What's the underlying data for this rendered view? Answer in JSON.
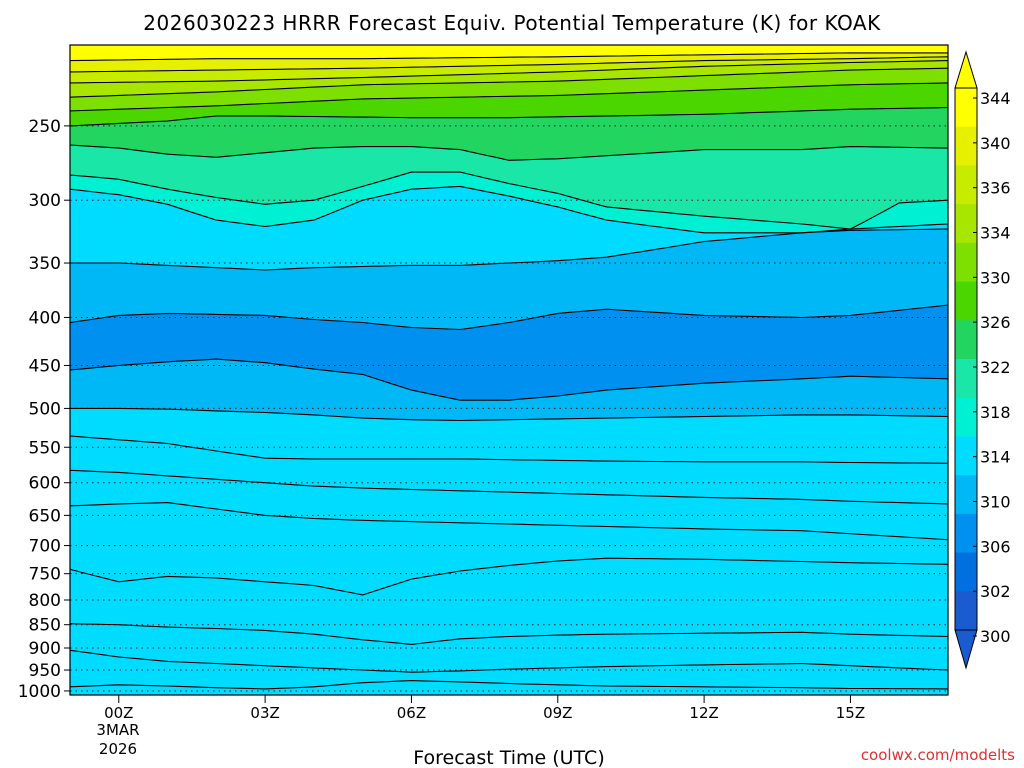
{
  "chart_data": {
    "type": "contour",
    "title": "2026030223 HRRR Forecast Equiv. Potential Temperature (K) for KOAK",
    "xlabel": "Forecast Time (UTC)",
    "ylabel": "",
    "x_ticks": [
      "00Z",
      "03Z",
      "06Z",
      "09Z",
      "12Z",
      "15Z"
    ],
    "x_tick_hours": [
      0,
      3,
      6,
      9,
      12,
      15
    ],
    "x_date_label": [
      "3MAR",
      "2026"
    ],
    "xlim": [
      -1,
      17
    ],
    "y_scale": "log",
    "y_ticks": [
      250,
      300,
      350,
      400,
      450,
      500,
      550,
      600,
      650,
      700,
      750,
      800,
      850,
      900,
      950,
      1000
    ],
    "ylim": [
      1010,
      205
    ],
    "colorbar": {
      "labels": [
        "344",
        "340",
        "336",
        "334",
        "330",
        "326",
        "322",
        "318",
        "314",
        "310",
        "306",
        "302",
        "300"
      ],
      "colors": [
        "#ffff00",
        "#e6f000",
        "#c8ec00",
        "#a8e600",
        "#7ee000",
        "#4cd600",
        "#22d460",
        "#1ae6a8",
        "#00f0d4",
        "#00dcff",
        "#00b8f6",
        "#0090f0",
        "#0070e0",
        "#1a5cd0"
      ]
    },
    "terrain_color": "#a0522d",
    "contours": [
      {
        "level": 336,
        "hours": [
          -1,
          2,
          5,
          9,
          12,
          15,
          17
        ],
        "pressures": [
          213,
          212,
          212,
          211,
          210,
          209,
          209
        ]
      },
      {
        "level": 334,
        "hours": [
          -1,
          2,
          5,
          9,
          12,
          15,
          17
        ],
        "pressures": [
          219,
          218,
          217,
          215,
          213,
          212,
          211
        ]
      },
      {
        "level": 332,
        "hours": [
          -1,
          2,
          5,
          9,
          12,
          15,
          17
        ],
        "pressures": [
          225,
          224,
          222,
          219,
          216,
          214,
          213
        ]
      },
      {
        "level": 330,
        "hours": [
          -1,
          2,
          5,
          9,
          12,
          15,
          17
        ],
        "pressures": [
          233,
          230,
          226,
          224,
          221,
          218,
          217
        ]
      },
      {
        "level": 328,
        "hours": [
          -1,
          2,
          5,
          9,
          12,
          15,
          17
        ],
        "pressures": [
          241,
          238,
          234,
          232,
          229,
          226,
          225
        ]
      },
      {
        "level": 326,
        "hours": [
          -1,
          1,
          2,
          3,
          6,
          8,
          12,
          15,
          17
        ],
        "pressures": [
          250,
          247,
          244,
          244,
          245,
          245,
          243,
          240,
          239
        ]
      },
      {
        "level": 324,
        "hours": [
          -1,
          0,
          1,
          2,
          3,
          4,
          5,
          6,
          7,
          8,
          9,
          10,
          12,
          14,
          15,
          17
        ],
        "pressures": [
          262,
          264,
          268,
          270,
          267,
          264,
          263,
          263,
          265,
          272,
          271,
          269,
          265,
          265,
          263,
          264
        ]
      },
      {
        "level": 322,
        "hours": [
          -1,
          0,
          1,
          2,
          3,
          4,
          5,
          6,
          7,
          8,
          9,
          10,
          12,
          14,
          15,
          16,
          17
        ],
        "pressures": [
          282,
          285,
          292,
          298,
          303,
          300,
          290,
          280,
          280,
          288,
          295,
          305,
          312,
          318,
          322,
          302,
          300
        ]
      },
      {
        "level": 320,
        "hours": [
          -1,
          0,
          1,
          2,
          3,
          4,
          5,
          6,
          7,
          8,
          9,
          10,
          12,
          14,
          15,
          17
        ],
        "pressures": [
          292,
          296,
          303,
          315,
          320,
          315,
          300,
          292,
          290,
          297,
          305,
          315,
          325,
          325,
          322,
          318
        ]
      },
      {
        "level": 318,
        "hours": [
          -1,
          0,
          1,
          2,
          3,
          4,
          5,
          6,
          7,
          8,
          9,
          10,
          12,
          14,
          15,
          17
        ],
        "pressures": [
          350,
          350,
          352,
          354,
          356,
          354,
          353,
          352,
          352,
          350,
          348,
          345,
          332,
          325,
          323,
          322
        ]
      },
      {
        "level": 316,
        "hours": [
          -1,
          0,
          1,
          2,
          3,
          4,
          5,
          6,
          7,
          8,
          9,
          10,
          12,
          14,
          15,
          17
        ],
        "pressures": [
          405,
          398,
          396,
          397,
          398,
          402,
          405,
          410,
          412,
          405,
          396,
          392,
          398,
          400,
          398,
          388
        ]
      },
      {
        "level": 314,
        "hours": [
          -1,
          0,
          1,
          2,
          3,
          4,
          5,
          6,
          7,
          8,
          9,
          10,
          12,
          14,
          15,
          17
        ],
        "pressures": [
          455,
          450,
          446,
          443,
          447,
          454,
          460,
          478,
          490,
          490,
          485,
          478,
          470,
          465,
          462,
          465
        ]
      },
      {
        "level": 312,
        "hours": [
          -1,
          0,
          1,
          2,
          3,
          4,
          5,
          6,
          7,
          8,
          9,
          10,
          12,
          14,
          15,
          17
        ],
        "pressures": [
          500,
          500,
          501,
          503,
          505,
          508,
          512,
          514,
          515,
          514,
          513,
          512,
          510,
          508,
          508,
          510
        ]
      },
      {
        "level": 310,
        "hours": [
          -1,
          0,
          1,
          2,
          3,
          4,
          5,
          6,
          7,
          8,
          9,
          10,
          12,
          14,
          15,
          17
        ],
        "pressures": [
          535,
          540,
          545,
          555,
          565,
          566,
          566,
          566,
          566,
          567,
          568,
          569,
          570,
          570,
          571,
          572
        ]
      },
      {
        "level": 308,
        "hours": [
          -1,
          0,
          1,
          2,
          3,
          4,
          5,
          6,
          7,
          8,
          9,
          10,
          12,
          14,
          15,
          17
        ],
        "pressures": [
          582,
          585,
          590,
          595,
          600,
          605,
          608,
          610,
          612,
          614,
          616,
          618,
          622,
          625,
          628,
          632
        ]
      },
      {
        "level": 306,
        "hours": [
          -1,
          0,
          1,
          2,
          3,
          4,
          5,
          6,
          7,
          8,
          9,
          10,
          12,
          14,
          15,
          17
        ],
        "pressures": [
          635,
          632,
          630,
          640,
          650,
          655,
          658,
          660,
          662,
          664,
          666,
          668,
          672,
          675,
          680,
          690
        ]
      },
      {
        "level": 304,
        "hours": [
          -1,
          0,
          1,
          2,
          3,
          4,
          5,
          6,
          7,
          8,
          9,
          10,
          12,
          14,
          15,
          17
        ],
        "pressures": [
          742,
          765,
          755,
          758,
          765,
          772,
          790,
          760,
          745,
          735,
          727,
          722,
          724,
          728,
          730,
          733
        ]
      },
      {
        "level": 302,
        "hours": [
          -1,
          0,
          1,
          2,
          3,
          4,
          5,
          6,
          7,
          8,
          9,
          10,
          12,
          14,
          15,
          17
        ],
        "pressures": [
          848,
          850,
          855,
          858,
          862,
          870,
          882,
          892,
          880,
          875,
          872,
          870,
          868,
          866,
          870,
          875
        ]
      },
      {
        "level": 306,
        "hours": [
          -1,
          0,
          1,
          2,
          3,
          4,
          5,
          6,
          7,
          8,
          9,
          10,
          12,
          14,
          15,
          17
        ],
        "pressures": [
          905,
          920,
          930,
          935,
          940,
          945,
          950,
          955,
          952,
          948,
          945,
          942,
          938,
          935,
          940,
          950
        ]
      },
      {
        "level": 310,
        "hours": [
          -1,
          0,
          1,
          2,
          3,
          4,
          5,
          6,
          7,
          8,
          9,
          10,
          12,
          14,
          15,
          17
        ],
        "pressures": [
          990,
          985,
          988,
          992,
          995,
          990,
          980,
          975,
          978,
          982,
          985,
          988,
          990,
          992,
          994,
          995
        ]
      }
    ]
  }
}
